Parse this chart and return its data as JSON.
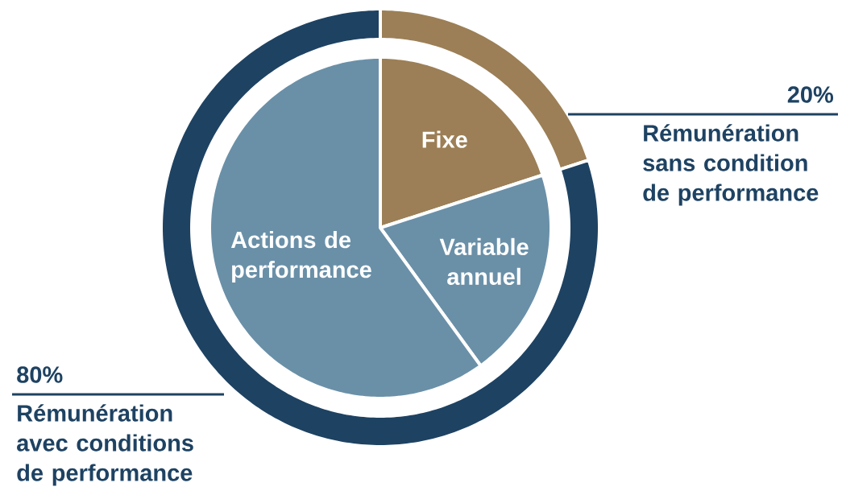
{
  "chart_data": [
    {
      "type": "donut",
      "categories": [
        "Rémunération sans condition de performance",
        "Rémunération avec conditions de performance"
      ],
      "values": [
        20,
        80
      ],
      "colors": [
        "#9c7f56",
        "#1e4262"
      ],
      "value_labels": [
        "20%",
        "80%"
      ]
    },
    {
      "type": "pie",
      "categories": [
        "Fixe",
        "Variable annuel",
        "Actions de performance"
      ],
      "values": [
        20,
        20,
        60
      ],
      "colors": [
        "#9c7f56",
        "#6a90a8",
        "#6a90a8"
      ]
    }
  ]
}
